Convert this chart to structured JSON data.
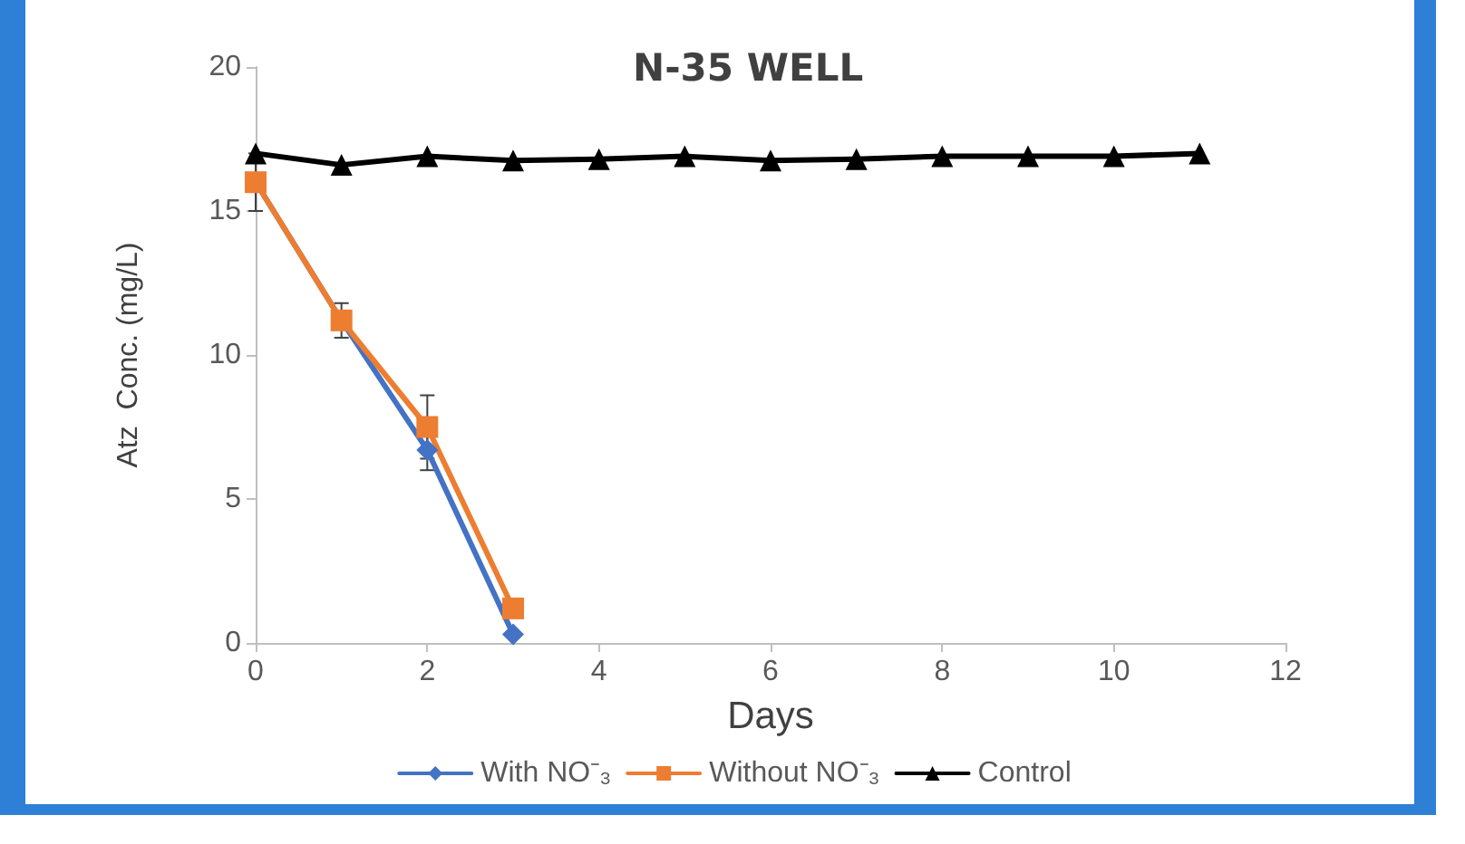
{
  "chart_data": {
    "type": "line",
    "title": "N-35 WELL",
    "xlabel": "Days",
    "ylabel": "Atz  Conc. (mg/L)",
    "xlim": [
      0,
      12
    ],
    "xticks": [
      0,
      2,
      4,
      6,
      8,
      10,
      12
    ],
    "ylim": [
      0,
      20
    ],
    "yticks": [
      0,
      5,
      10,
      15,
      20
    ],
    "grid": false,
    "legend": "bottom",
    "line_style": "solid",
    "series": [
      {
        "name": "With NO⁻₃",
        "color": "#4472c4",
        "marker": "diamond",
        "x": [
          0,
          1,
          2,
          3
        ],
        "values": [
          16.0,
          11.2,
          6.7,
          0.3
        ],
        "errors": [
          1.0,
          0.6,
          0.7,
          null
        ]
      },
      {
        "name": "Without NO⁻₃",
        "color": "#ed7d31",
        "marker": "square",
        "x": [
          0,
          1,
          2,
          3
        ],
        "values": [
          16.0,
          11.2,
          7.5,
          1.2
        ],
        "errors": [
          null,
          null,
          1.1,
          null
        ]
      },
      {
        "name": "Control",
        "color": "#000000",
        "marker": "triangle",
        "x": [
          0,
          1,
          2,
          3,
          4,
          5,
          6,
          7,
          8,
          9,
          10,
          11
        ],
        "values": [
          17.0,
          16.6,
          16.9,
          16.75,
          16.8,
          16.9,
          16.75,
          16.8,
          16.9,
          16.9,
          16.9,
          17.0
        ]
      }
    ]
  }
}
